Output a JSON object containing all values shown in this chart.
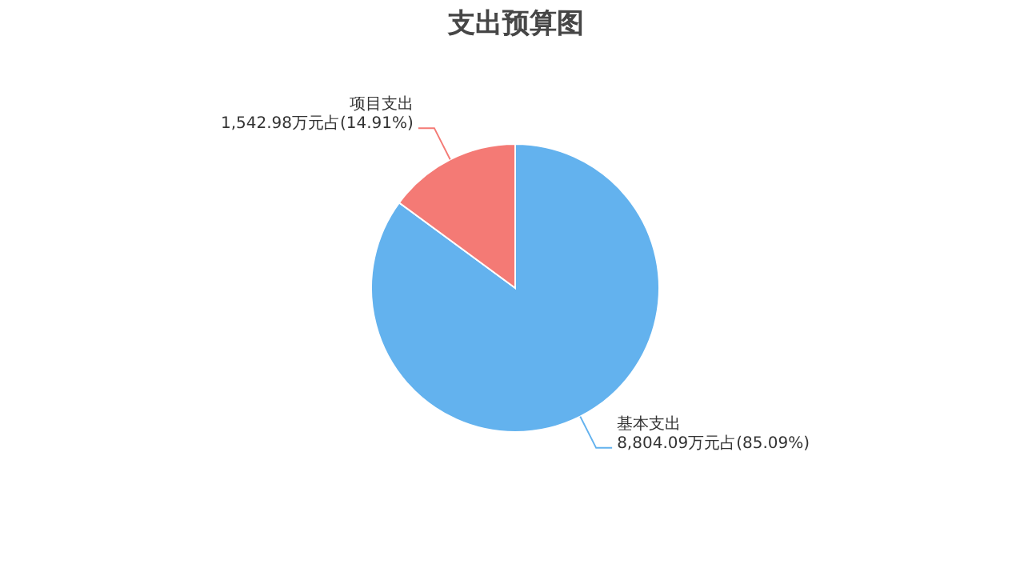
{
  "chart_data": {
    "type": "pie",
    "title": "支出预算图",
    "categories": [
      "基本支出",
      "项目支出"
    ],
    "values": [
      8804.09,
      1542.98
    ],
    "colors": [
      "#63b2ee",
      "#f47a75"
    ],
    "value_labels": [
      "8,804.09万元占(85.09%)",
      "1,542.98万元占(14.91%)"
    ],
    "legend": false
  }
}
